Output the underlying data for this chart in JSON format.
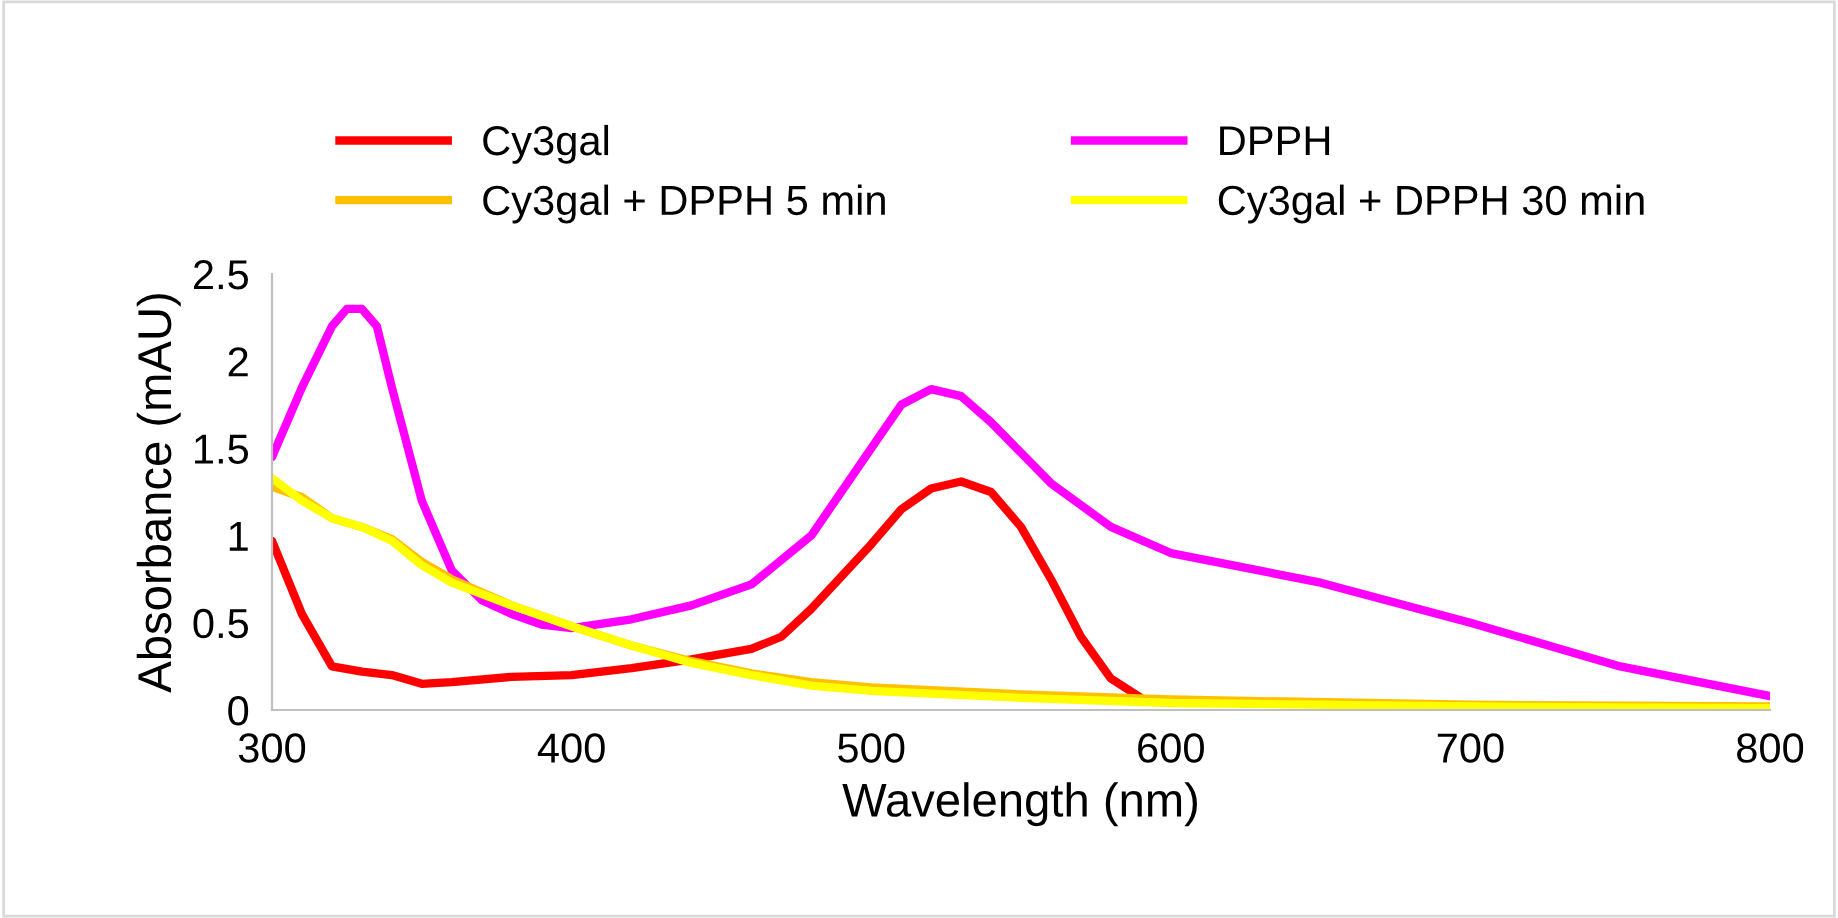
{
  "chart_data": {
    "type": "line",
    "xlabel": "Wavelength (nm)",
    "ylabel": "Absorbance (mAU)",
    "xlim": [
      300,
      800
    ],
    "xticks": [
      300,
      400,
      500,
      600,
      700,
      800
    ],
    "ylim": [
      0,
      2.5
    ],
    "yticks": [
      0,
      0.5,
      1,
      1.5,
      2,
      2.5
    ],
    "grid": false,
    "legend": "top",
    "marker": "none",
    "line_style": "solid",
    "series": [
      {
        "name": "Cy3gal",
        "color": "#ff0000",
        "x": [
          300,
          310,
          320,
          330,
          340,
          350,
          360,
          380,
          400,
          420,
          440,
          460,
          470,
          480,
          500,
          510,
          520,
          530,
          540,
          550,
          560,
          570,
          580,
          590
        ],
        "values": [
          0.97,
          0.55,
          0.25,
          0.22,
          0.2,
          0.15,
          0.16,
          0.19,
          0.2,
          0.24,
          0.29,
          0.35,
          0.42,
          0.58,
          0.95,
          1.15,
          1.27,
          1.31,
          1.25,
          1.05,
          0.75,
          0.42,
          0.18,
          0.07
        ]
      },
      {
        "name": "DPPH",
        "color": "#ff00ff",
        "x": [
          300,
          310,
          320,
          325,
          330,
          335,
          340,
          350,
          360,
          370,
          380,
          390,
          400,
          420,
          440,
          460,
          480,
          500,
          510,
          520,
          530,
          540,
          560,
          580,
          600,
          650,
          700,
          750,
          800
        ],
        "values": [
          1.45,
          1.85,
          2.2,
          2.3,
          2.3,
          2.2,
          1.85,
          1.2,
          0.8,
          0.63,
          0.55,
          0.49,
          0.47,
          0.52,
          0.6,
          0.72,
          1.0,
          1.5,
          1.75,
          1.84,
          1.8,
          1.65,
          1.3,
          1.05,
          0.9,
          0.73,
          0.5,
          0.25,
          0.08
        ]
      },
      {
        "name": "Cy3gal + DPPH 5 min",
        "color": "#ffc000",
        "x": [
          300,
          310,
          320,
          330,
          340,
          350,
          360,
          380,
          400,
          420,
          440,
          460,
          480,
          500,
          550,
          600,
          700,
          800
        ],
        "values": [
          1.28,
          1.22,
          1.1,
          1.05,
          0.98,
          0.85,
          0.75,
          0.6,
          0.48,
          0.37,
          0.28,
          0.21,
          0.16,
          0.13,
          0.09,
          0.06,
          0.03,
          0.02
        ]
      },
      {
        "name": "Cy3gal + DPPH 30 min",
        "color": "#ffff00",
        "x": [
          300,
          310,
          320,
          330,
          340,
          350,
          360,
          380,
          400,
          420,
          440,
          460,
          480,
          500,
          550,
          600,
          700,
          800
        ],
        "values": [
          1.33,
          1.2,
          1.1,
          1.05,
          0.97,
          0.83,
          0.73,
          0.6,
          0.48,
          0.37,
          0.27,
          0.2,
          0.14,
          0.11,
          0.07,
          0.04,
          0.02,
          0.01
        ]
      }
    ]
  }
}
